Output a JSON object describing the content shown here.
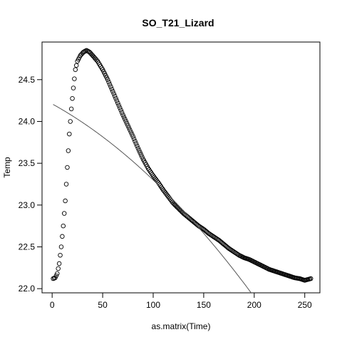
{
  "chart_data": {
    "type": "scatter",
    "title": "SO_T21_Lizard",
    "xlabel": "as.matrix(Time)",
    "ylabel": "Temp",
    "xlim": [
      -10,
      265
    ],
    "ylim": [
      21.95,
      24.95
    ],
    "xticks": [
      0,
      50,
      100,
      150,
      200,
      250
    ],
    "yticks": [
      22.0,
      22.5,
      23.0,
      23.5,
      24.0,
      24.5
    ],
    "xtick_labels": [
      "0",
      "50",
      "100",
      "150",
      "200",
      "250"
    ],
    "ytick_labels": [
      "22.0",
      "22.5",
      "23.0",
      "23.5",
      "24.0",
      "24.5"
    ],
    "grid": false,
    "legend": "none",
    "marker": "open-circle",
    "points_x_range": [
      1,
      256
    ],
    "shape_keypoints": [
      [
        1,
        22.12
      ],
      [
        3,
        22.13
      ],
      [
        5,
        22.18
      ],
      [
        7,
        22.3
      ],
      [
        9,
        22.5
      ],
      [
        11,
        22.75
      ],
      [
        13,
        23.05
      ],
      [
        15,
        23.45
      ],
      [
        17,
        23.85
      ],
      [
        19,
        24.15
      ],
      [
        21,
        24.4
      ],
      [
        23,
        24.62
      ],
      [
        25,
        24.72
      ],
      [
        28,
        24.79
      ],
      [
        31,
        24.83
      ],
      [
        34,
        24.85
      ],
      [
        37,
        24.83
      ],
      [
        40,
        24.79
      ],
      [
        45,
        24.72
      ],
      [
        50,
        24.62
      ],
      [
        55,
        24.5
      ],
      [
        60,
        24.36
      ],
      [
        65,
        24.22
      ],
      [
        70,
        24.08
      ],
      [
        75,
        23.95
      ],
      [
        80,
        23.82
      ],
      [
        85,
        23.68
      ],
      [
        90,
        23.55
      ],
      [
        95,
        23.44
      ],
      [
        100,
        23.35
      ],
      [
        105,
        23.27
      ],
      [
        110,
        23.18
      ],
      [
        115,
        23.1
      ],
      [
        120,
        23.02
      ],
      [
        125,
        22.96
      ],
      [
        130,
        22.9
      ],
      [
        135,
        22.85
      ],
      [
        140,
        22.8
      ],
      [
        145,
        22.75
      ],
      [
        150,
        22.71
      ],
      [
        155,
        22.66
      ],
      [
        160,
        22.62
      ],
      [
        165,
        22.58
      ],
      [
        170,
        22.53
      ],
      [
        175,
        22.48
      ],
      [
        180,
        22.44
      ],
      [
        185,
        22.4
      ],
      [
        190,
        22.37
      ],
      [
        195,
        22.35
      ],
      [
        200,
        22.32
      ],
      [
        205,
        22.29
      ],
      [
        210,
        22.26
      ],
      [
        215,
        22.23
      ],
      [
        220,
        22.21
      ],
      [
        225,
        22.19
      ],
      [
        230,
        22.17
      ],
      [
        235,
        22.15
      ],
      [
        240,
        22.13
      ],
      [
        245,
        22.12
      ],
      [
        250,
        22.1
      ],
      [
        256,
        22.12
      ]
    ],
    "fit_line": {
      "type": "quadratic",
      "coefficients": [
        24.21,
        -0.00665,
        -2.45e-05
      ],
      "x_range": [
        1,
        256
      ]
    },
    "colors": {
      "points": "#000000",
      "fit_line": "#555555",
      "axes": "#000000"
    }
  }
}
